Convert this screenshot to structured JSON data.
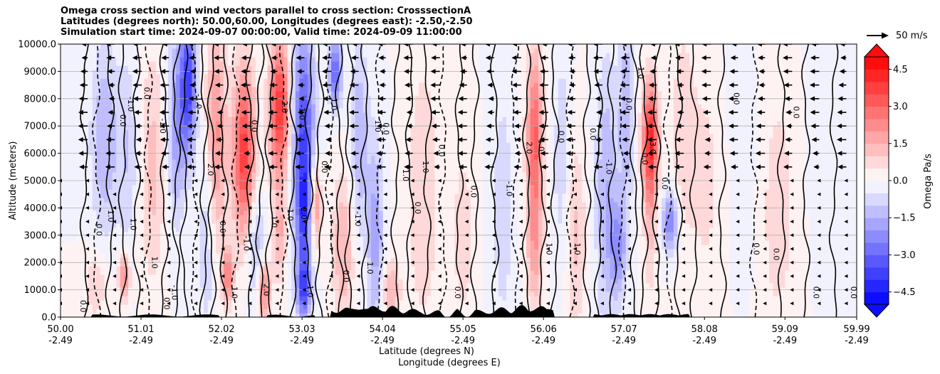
{
  "chart_data": {
    "type": "heatmap",
    "subtype": "cross-section filled contour with wind vectors",
    "title_lines": [
      "Omega cross section and wind vectors parallel to cross section: CrosssectionA",
      "Latitudes (degrees north): 50.00,60.00, Longitudes (degrees east): -2.50,-2.50",
      "Simulation start time: 2024-09-07 00:00:00, Valid time: 2024-09-09 11:00:00"
    ],
    "ylabel": "Altitude (meters)",
    "xlabel_lat": "Latitude (degrees N)",
    "xlabel_lon": "Longitude (degrees E)",
    "ylim": [
      0,
      10000
    ],
    "xlim": [
      50.0,
      59.99
    ],
    "y_ticks": [
      0,
      1000,
      2000,
      3000,
      4000,
      5000,
      6000,
      7000,
      8000,
      9000,
      10000
    ],
    "y_tick_labels": [
      "0.0",
      "1000.0",
      "2000.0",
      "3000.0",
      "4000.0",
      "5000.0",
      "6000.0",
      "7000.0",
      "8000.0",
      "9000.0",
      "10000.0"
    ],
    "x_ticks": [
      50.0,
      51.01,
      52.02,
      53.03,
      54.04,
      55.05,
      56.06,
      57.07,
      58.08,
      59.09,
      59.99
    ],
    "x_tick_lat_labels": [
      "50.00",
      "51.01",
      "52.02",
      "53.03",
      "54.04",
      "55.05",
      "56.06",
      "57.07",
      "58.08",
      "59.09",
      "59.99"
    ],
    "x_tick_lon_labels": [
      "-2.49",
      "-2.49",
      "-2.49",
      "-2.49",
      "-2.49",
      "-2.49",
      "-2.49",
      "-2.49",
      "-2.49",
      "-2.49",
      "-2.49"
    ],
    "grid": "horizontal",
    "colorbar": {
      "label": "Omega Pa/s",
      "range": [
        -5.0,
        5.0
      ],
      "extend": "both",
      "tick_values": [
        -4.5,
        -3.0,
        -1.5,
        0.0,
        1.5,
        3.0,
        4.5
      ],
      "tick_labels": [
        "−4.5",
        "−3.0",
        "−1.5",
        "0.0",
        "1.5",
        "3.0",
        "4.5"
      ],
      "levels": 20
    },
    "reference_vector": {
      "speed": 50,
      "label": "50 m/s"
    },
    "contour_labels": [
      {
        "lat": 50.45,
        "alt": 3200,
        "text": "0.0"
      },
      {
        "lat": 50.25,
        "alt": 400,
        "text": "0.0"
      },
      {
        "lat": 50.75,
        "alt": 7200,
        "text": "0.0"
      },
      {
        "lat": 50.6,
        "alt": 3700,
        "text": "1.0"
      },
      {
        "lat": 50.88,
        "alt": 3400,
        "text": "1.0"
      },
      {
        "lat": 50.85,
        "alt": 7800,
        "text": "-1.0"
      },
      {
        "lat": 51.05,
        "alt": 8200,
        "text": "0.0"
      },
      {
        "lat": 51.15,
        "alt": 2000,
        "text": "1.0"
      },
      {
        "lat": 51.25,
        "alt": 7000,
        "text": "-1.0"
      },
      {
        "lat": 51.3,
        "alt": 500,
        "text": "0.0"
      },
      {
        "lat": 51.4,
        "alt": 900,
        "text": "-1.0"
      },
      {
        "lat": 51.7,
        "alt": 7900,
        "text": "-1.0"
      },
      {
        "lat": 51.85,
        "alt": 5400,
        "text": "2.0"
      },
      {
        "lat": 52.0,
        "alt": 3300,
        "text": "0.0"
      },
      {
        "lat": 52.15,
        "alt": 900,
        "text": "1.0"
      },
      {
        "lat": 52.3,
        "alt": 2700,
        "text": "-1.0"
      },
      {
        "lat": 52.4,
        "alt": 7000,
        "text": "0.0"
      },
      {
        "lat": 52.55,
        "alt": 1000,
        "text": "2.0"
      },
      {
        "lat": 52.65,
        "alt": 3500,
        "text": "1.0"
      },
      {
        "lat": 52.78,
        "alt": 7700,
        "text": "2.0"
      },
      {
        "lat": 52.85,
        "alt": 3800,
        "text": "-1.0"
      },
      {
        "lat": 53.0,
        "alt": 7500,
        "text": "-1.0"
      },
      {
        "lat": 53.02,
        "alt": 3800,
        "text": "2.0"
      },
      {
        "lat": 53.1,
        "alt": 1000,
        "text": "-1.0"
      },
      {
        "lat": 53.28,
        "alt": 5500,
        "text": "0.0"
      },
      {
        "lat": 53.4,
        "alt": 7800,
        "text": "1.0"
      },
      {
        "lat": 53.55,
        "alt": 1500,
        "text": "0.0"
      },
      {
        "lat": 53.7,
        "alt": 3600,
        "text": "-1.0"
      },
      {
        "lat": 53.85,
        "alt": 1800,
        "text": "1.0"
      },
      {
        "lat": 53.95,
        "alt": 7000,
        "text": "1.0"
      },
      {
        "lat": 54.05,
        "alt": 6900,
        "text": "0.0"
      },
      {
        "lat": 54.3,
        "alt": 5200,
        "text": "1.0"
      },
      {
        "lat": 54.45,
        "alt": 4000,
        "text": "0.0"
      },
      {
        "lat": 54.55,
        "alt": 5500,
        "text": "1.0"
      },
      {
        "lat": 54.75,
        "alt": 6100,
        "text": "0.0"
      },
      {
        "lat": 54.95,
        "alt": 900,
        "text": "0.0"
      },
      {
        "lat": 55.15,
        "alt": 4600,
        "text": "0.0"
      },
      {
        "lat": 55.6,
        "alt": 4700,
        "text": "-1.0"
      },
      {
        "lat": 55.85,
        "alt": 6200,
        "text": "2.0"
      },
      {
        "lat": 56.0,
        "alt": 6300,
        "text": "1.0"
      },
      {
        "lat": 56.1,
        "alt": 2500,
        "text": "1.0"
      },
      {
        "lat": 56.25,
        "alt": 6600,
        "text": "0.0"
      },
      {
        "lat": 56.45,
        "alt": 2500,
        "text": "1.0"
      },
      {
        "lat": 56.65,
        "alt": 6700,
        "text": "0.0"
      },
      {
        "lat": 56.85,
        "alt": 5500,
        "text": "-1.0"
      },
      {
        "lat": 57.1,
        "alt": 7800,
        "text": "0.0"
      },
      {
        "lat": 57.3,
        "alt": 5800,
        "text": "0.0"
      },
      {
        "lat": 57.4,
        "alt": 6200,
        "text": "3.0"
      },
      {
        "lat": 57.25,
        "alt": 9000,
        "text": "-1.0"
      },
      {
        "lat": 57.55,
        "alt": 4900,
        "text": "0.0"
      },
      {
        "lat": 58.45,
        "alt": 8000,
        "text": "0.0"
      },
      {
        "lat": 58.7,
        "alt": 2500,
        "text": "0.0"
      },
      {
        "lat": 58.95,
        "alt": 2300,
        "text": "0.0"
      },
      {
        "lat": 59.2,
        "alt": 7500,
        "text": "0.0"
      },
      {
        "lat": 59.45,
        "alt": 900,
        "text": "0.0"
      },
      {
        "lat": 59.92,
        "alt": 900,
        "text": "0.0"
      }
    ],
    "data_description": "Alternating vertically elongated positive (red, sinking) and negative (blue, rising) omega bands across the section; strongest positive cores near 52.3N, 52.7N, 57.4N (up to ~4 Pa/s); strongest negative cores near 51.6N and 53.1N (down to ~-4 Pa/s); weak values north of 57.8N; wind vectors mostly pointing south (leftward) above 5 km; black terrain profile along the bottom between 53.5N and 56.2N."
  },
  "colors": {
    "neg_max": "#0000ff",
    "zero": "#ffffff",
    "pos_max": "#ff0000",
    "terrain": "#000000",
    "grid": "#b0b0b0"
  }
}
